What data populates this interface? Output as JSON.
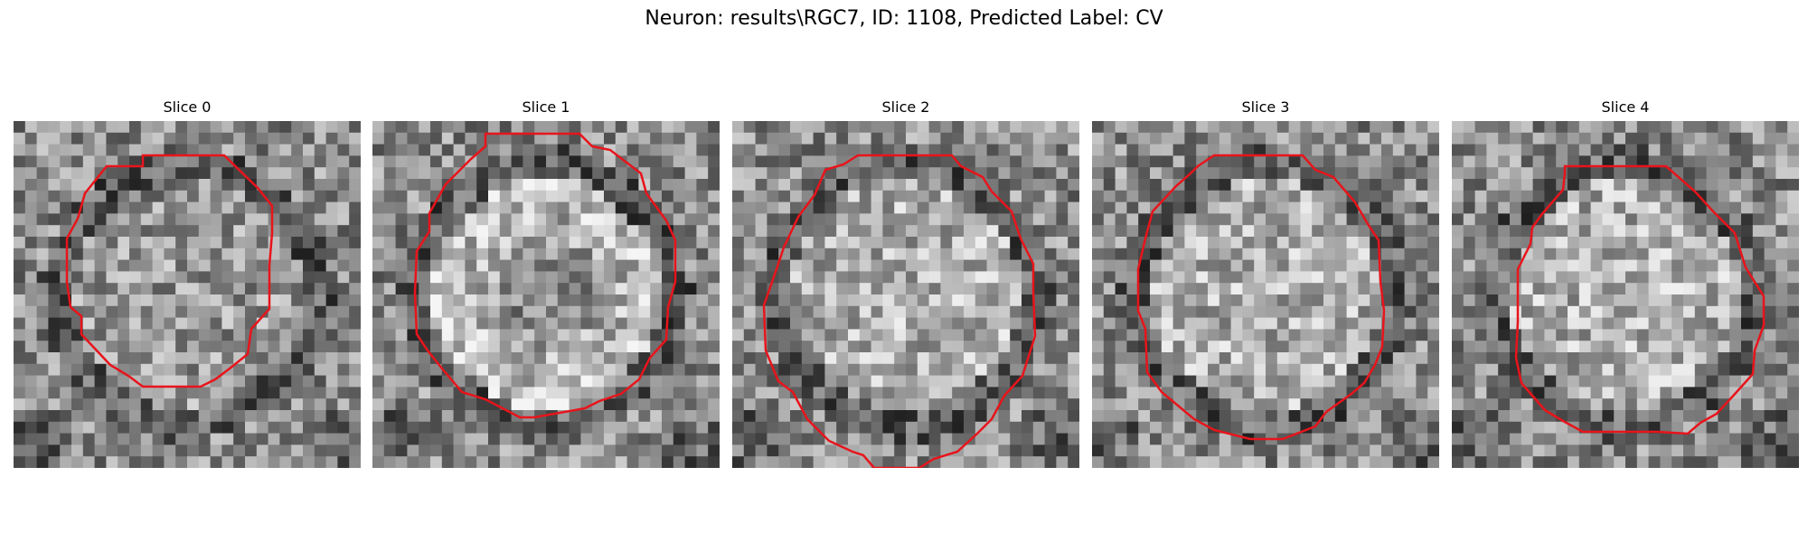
{
  "figure": {
    "title": "Neuron: results\\RGC7, ID: 1108, Predicted Label: CV",
    "grid_size": 30,
    "panels": [
      {
        "title": "Slice 0",
        "seed": 11,
        "contrast": "lowcenter"
      },
      {
        "title": "Slice 1",
        "seed": 23,
        "contrast": "darkcenter"
      },
      {
        "title": "Slice 2",
        "seed": 37,
        "contrast": "brightcenter"
      },
      {
        "title": "Slice 3",
        "seed": 41,
        "contrast": "brightcenter"
      },
      {
        "title": "Slice 4",
        "seed": 53,
        "contrast": "brightcenter"
      }
    ],
    "contour_color": "#e8141b"
  }
}
